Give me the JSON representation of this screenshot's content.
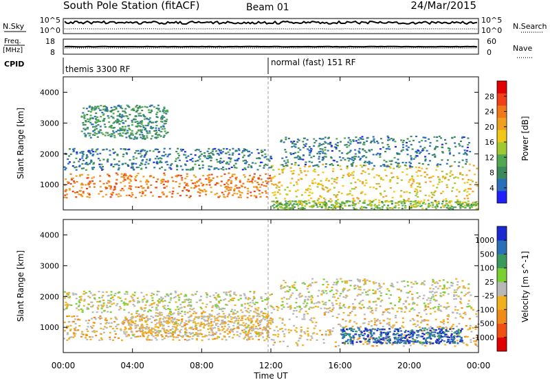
{
  "header": {
    "station": "South Pole Station (fitACF)",
    "beam": "Beam 01",
    "date": "24/Mar/2015"
  },
  "aux": {
    "nsky_label": "N.Sky",
    "nsky_ticks": [
      "10^5",
      "10^0"
    ],
    "nsearch_label": "N.Search",
    "nsearch_ticks": [
      "10^5",
      "10^0"
    ],
    "freq_label_1": "Freq.",
    "freq_label_2": "[MHz]",
    "freq_ticks": [
      "18",
      "8"
    ],
    "nave_label": "Nave",
    "nave_ticks": [
      "60",
      "0"
    ],
    "cpid_label": "CPID",
    "cpid_modes": [
      {
        "name": "themis 3300 RF",
        "start_hour": 0
      },
      {
        "name": "normal (fast) 151 RF",
        "start_hour": 12
      }
    ]
  },
  "x_ticks": [
    "00:00",
    "04:00",
    "08:00",
    "12:00",
    "16:00",
    "20:00",
    "00:00"
  ],
  "chart_data": [
    {
      "type": "heatmap",
      "quantity": "Power",
      "xlabel": "Time UT",
      "ylabel": "Slant Range [km]",
      "xlim": [
        0,
        24
      ],
      "ylim": [
        180,
        4500
      ],
      "y_ticks": [
        1000,
        2000,
        3000,
        4000
      ],
      "colorbar": {
        "label": "Power [dB]",
        "ticks": [
          "28",
          "24",
          "20",
          "16",
          "12",
          "8",
          "4"
        ],
        "colors": [
          "#2020ff",
          "#2a70b8",
          "#3a8a5c",
          "#50a850",
          "#a0c830",
          "#f0c818",
          "#f0a020",
          "#f07818",
          "#f04018",
          "#e00000"
        ],
        "range": [
          0,
          30
        ]
      },
      "regions": [
        {
          "t0": 0.0,
          "t1": 12.0,
          "r0": 600,
          "r1": 1400,
          "value": 22
        },
        {
          "t0": 0.0,
          "t1": 12.0,
          "r0": 1500,
          "r1": 2200,
          "value": 6
        },
        {
          "t0": 1.0,
          "t1": 6.0,
          "r0": 2500,
          "r1": 3600,
          "value": 8
        },
        {
          "t0": 12.0,
          "t1": 24.0,
          "r0": 400,
          "r1": 1700,
          "value": 17
        },
        {
          "t0": 12.0,
          "t1": 24.0,
          "r0": 200,
          "r1": 500,
          "value": 12
        },
        {
          "t0": 12.5,
          "t1": 23.5,
          "r0": 1600,
          "r1": 2600,
          "value": 6
        }
      ]
    },
    {
      "type": "heatmap",
      "quantity": "Velocity",
      "xlabel": "Time UT",
      "ylabel": "Slant Range [km]",
      "xlim": [
        0,
        24
      ],
      "ylim": [
        180,
        4500
      ],
      "y_ticks": [
        1000,
        2000,
        3000,
        4000
      ],
      "colorbar": {
        "label": "Velocity [m s^-1]",
        "ticks": [
          "1000",
          "500",
          "100",
          "25",
          "-25",
          "-100",
          "-500",
          "-1000"
        ],
        "colors": [
          "#e00000",
          "#f05010",
          "#f08a18",
          "#f0b020",
          "#b8b8b8",
          "#7ad030",
          "#3a9a5c",
          "#2a70b8",
          "#1a2ad0"
        ],
        "range": [
          -1000,
          1000
        ]
      },
      "regions": [
        {
          "t0": 0.0,
          "t1": 12.0,
          "r0": 600,
          "r1": 1400,
          "value": -200
        },
        {
          "t0": 0.0,
          "t1": 12.0,
          "r0": 1500,
          "r1": 2200,
          "value": 0
        },
        {
          "t0": 3.5,
          "t1": 12.0,
          "r0": 700,
          "r1": 1500,
          "value": -120
        },
        {
          "t0": 12.0,
          "t1": 24.0,
          "r0": 400,
          "r1": 1700,
          "value": -150
        },
        {
          "t0": 16.0,
          "t1": 23.0,
          "r0": 500,
          "r1": 1000,
          "value": 700
        },
        {
          "t0": 12.5,
          "t1": 23.5,
          "r0": 1600,
          "r1": 2600,
          "value": 0
        }
      ]
    }
  ]
}
